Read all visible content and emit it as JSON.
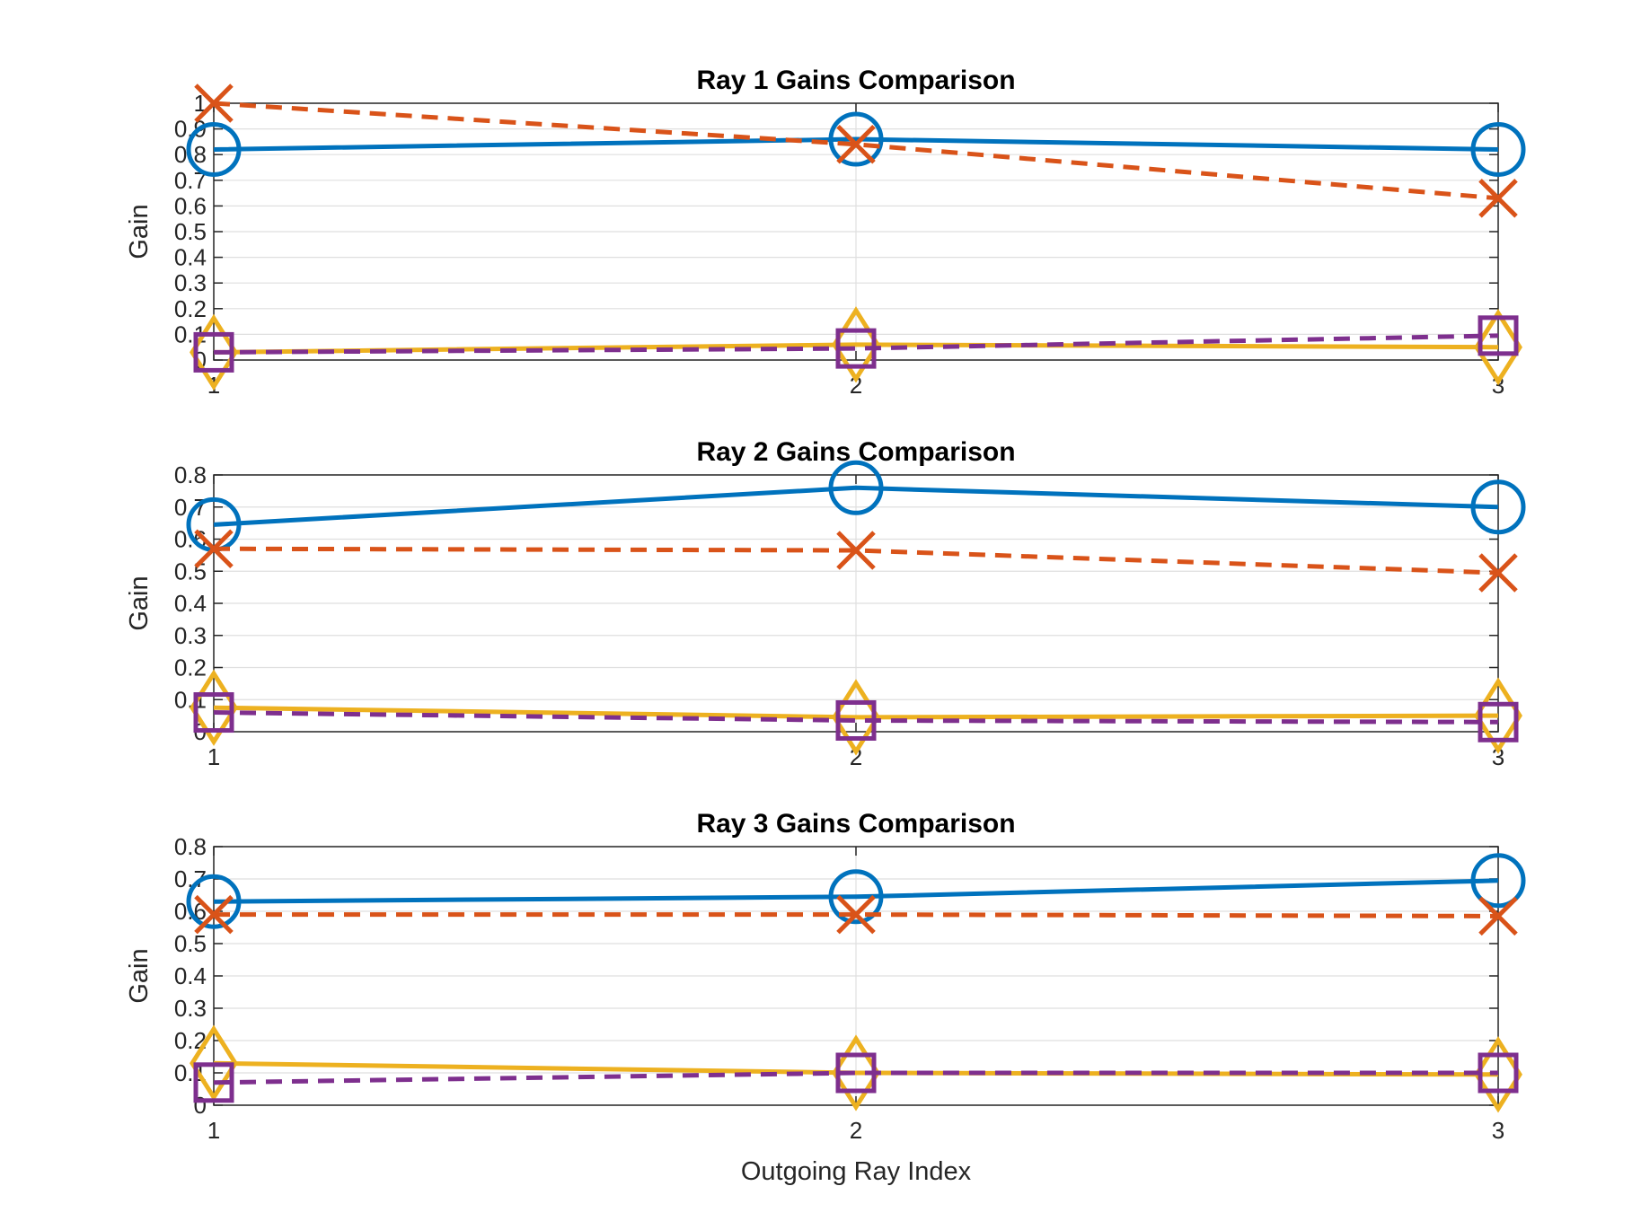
{
  "chart_data": [
    {
      "type": "line",
      "title": "Ray 1 Gains Comparison",
      "xlabel": "",
      "ylabel": "Gain",
      "x": [
        1,
        2,
        3
      ],
      "xlim": [
        1,
        3
      ],
      "ylim": [
        0,
        1
      ],
      "xticks": [
        "1",
        "2",
        "3"
      ],
      "yticks": [
        "0",
        "0.1",
        "0.2",
        "0.3",
        "0.4",
        "0.5",
        "0.6",
        "0.7",
        "0.8",
        "0.9",
        "1"
      ],
      "grid": true,
      "series": [
        {
          "values": [
            0.82,
            0.86,
            0.82
          ],
          "color": "#0072bd",
          "marker": "circle",
          "dash": "solid"
        },
        {
          "values": [
            1.0,
            0.84,
            0.63
          ],
          "color": "#d95319",
          "marker": "x",
          "dash": "dashed"
        },
        {
          "values": [
            0.03,
            0.06,
            0.05
          ],
          "color": "#edb120",
          "marker": "diamond",
          "dash": "solid"
        },
        {
          "values": [
            0.03,
            0.045,
            0.095
          ],
          "color": "#7e2f8e",
          "marker": "square",
          "dash": "dashed"
        }
      ]
    },
    {
      "type": "line",
      "title": "Ray 2 Gains Comparison",
      "xlabel": "",
      "ylabel": "Gain",
      "x": [
        1,
        2,
        3
      ],
      "xlim": [
        1,
        3
      ],
      "ylim": [
        0,
        0.8
      ],
      "xticks": [
        "1",
        "2",
        "3"
      ],
      "yticks": [
        "0",
        "0.1",
        "0.2",
        "0.3",
        "0.4",
        "0.5",
        "0.6",
        "0.7",
        "0.8"
      ],
      "grid": true,
      "series": [
        {
          "values": [
            0.645,
            0.76,
            0.7
          ],
          "color": "#0072bd",
          "marker": "circle",
          "dash": "solid"
        },
        {
          "values": [
            0.57,
            0.565,
            0.495
          ],
          "color": "#d95319",
          "marker": "x",
          "dash": "dashed"
        },
        {
          "values": [
            0.075,
            0.045,
            0.05
          ],
          "color": "#edb120",
          "marker": "diamond",
          "dash": "solid"
        },
        {
          "values": [
            0.06,
            0.035,
            0.03
          ],
          "color": "#7e2f8e",
          "marker": "square",
          "dash": "dashed"
        }
      ]
    },
    {
      "type": "line",
      "title": "Ray 3 Gains Comparison",
      "xlabel": "Outgoing Ray Index",
      "ylabel": "Gain",
      "x": [
        1,
        2,
        3
      ],
      "xlim": [
        1,
        3
      ],
      "ylim": [
        0,
        0.8
      ],
      "xticks": [
        "1",
        "2",
        "3"
      ],
      "yticks": [
        "0",
        "0.1",
        "0.2",
        "0.3",
        "0.4",
        "0.5",
        "0.6",
        "0.7",
        "0.8"
      ],
      "grid": true,
      "series": [
        {
          "values": [
            0.63,
            0.645,
            0.695
          ],
          "color": "#0072bd",
          "marker": "circle",
          "dash": "solid"
        },
        {
          "values": [
            0.59,
            0.59,
            0.585
          ],
          "color": "#d95319",
          "marker": "x",
          "dash": "dashed"
        },
        {
          "values": [
            0.13,
            0.1,
            0.095
          ],
          "color": "#edb120",
          "marker": "diamond",
          "dash": "solid"
        },
        {
          "values": [
            0.07,
            0.1,
            0.1
          ],
          "color": "#7e2f8e",
          "marker": "square",
          "dash": "dashed"
        }
      ]
    }
  ]
}
